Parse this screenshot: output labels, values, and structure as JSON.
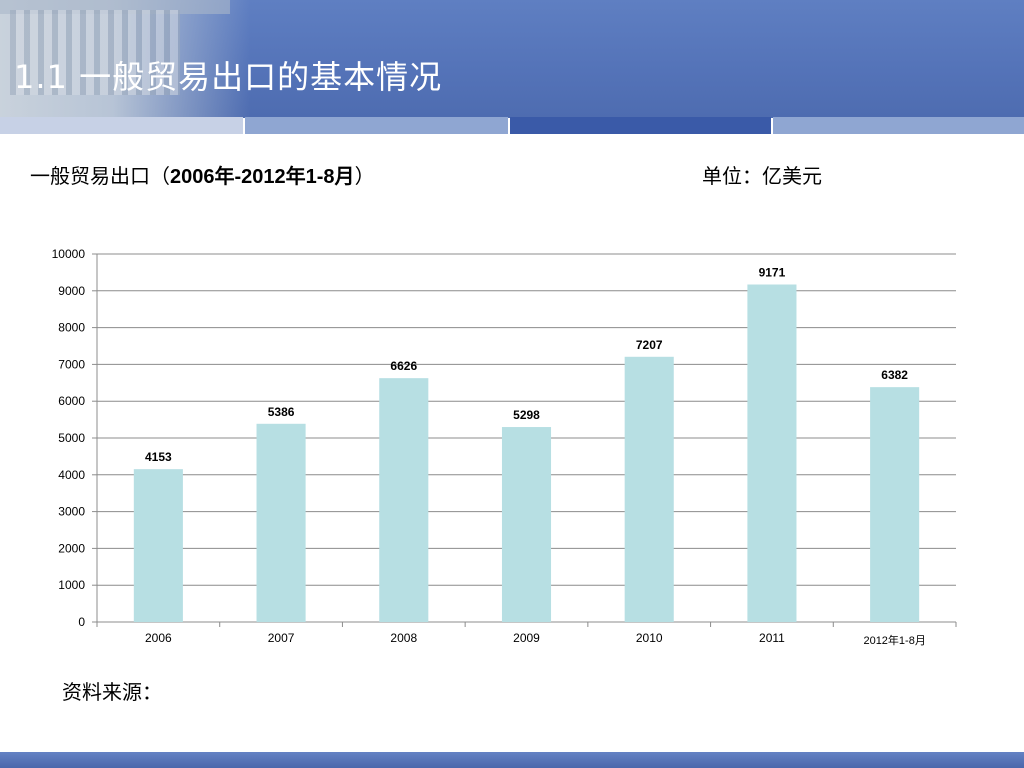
{
  "header": {
    "title": "1.1 一般贸易出口的基本情况",
    "bg_color": "#5473b8",
    "accent_strip_color": "#3a5aa8"
  },
  "subtitle": {
    "prefix": "一般贸易出口（",
    "range": "2006年-2012年1-8月",
    "suffix": "）"
  },
  "unit_label": "单位：亿美元",
  "source_label": "资料来源：",
  "chart_data": {
    "type": "bar",
    "categories": [
      "2006",
      "2007",
      "2008",
      "2009",
      "2010",
      "2011",
      "2012年1-8月"
    ],
    "values": [
      4153,
      5386,
      6626,
      5298,
      7207,
      9171,
      6382
    ],
    "ylim": [
      0,
      10000
    ],
    "yticks": [
      0,
      1000,
      2000,
      3000,
      4000,
      5000,
      6000,
      7000,
      8000,
      9000,
      10000
    ],
    "bar_color": "#b7dfe3",
    "grid": true,
    "legend": "none",
    "data_labels": true
  }
}
